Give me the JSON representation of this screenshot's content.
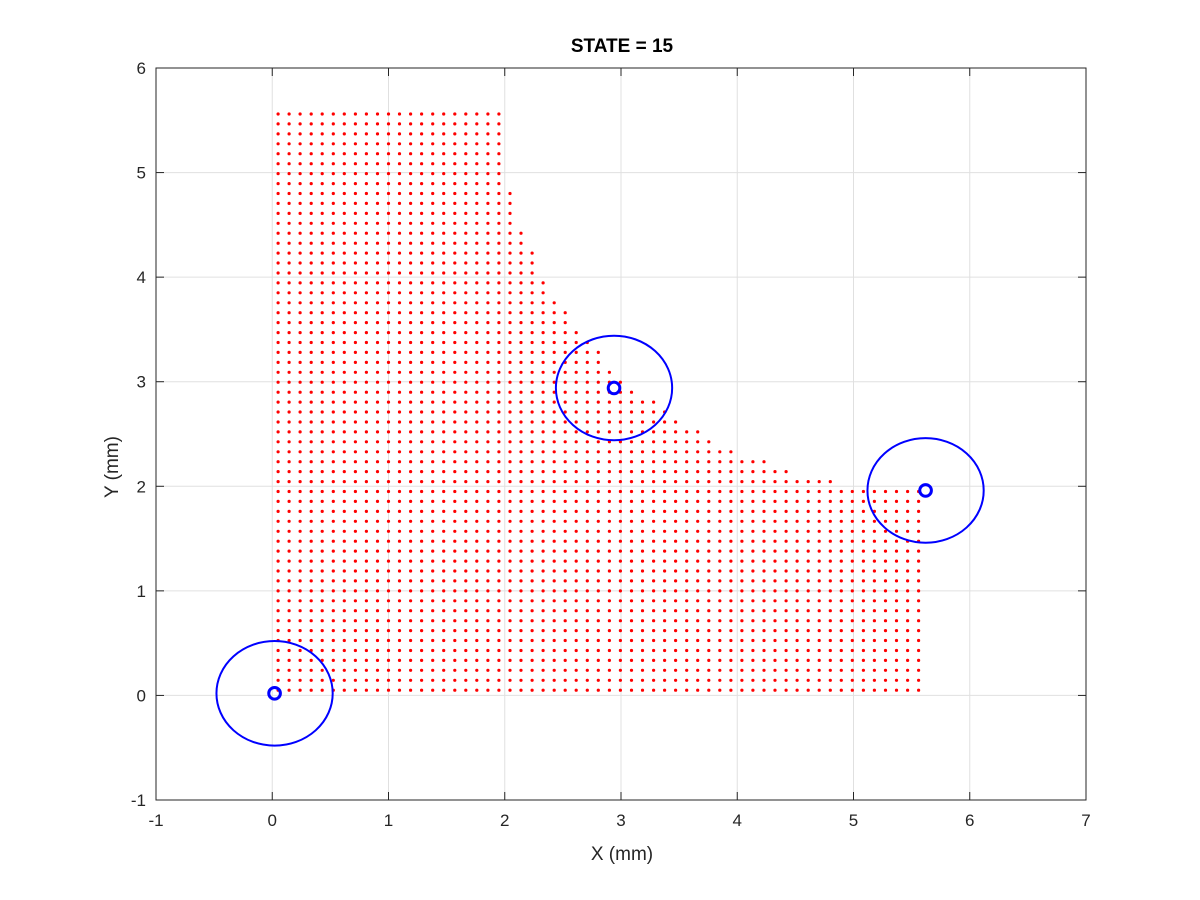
{
  "chart_data": {
    "type": "scatter",
    "title": "STATE = 15",
    "xlabel": "X (mm)",
    "ylabel": "Y (mm)",
    "xlim": [
      -1,
      7
    ],
    "ylim": [
      -1,
      6
    ],
    "xticks": [
      -1,
      0,
      1,
      2,
      3,
      4,
      5,
      6,
      7
    ],
    "yticks": [
      -1,
      0,
      1,
      2,
      3,
      4,
      5,
      6
    ],
    "xtick_labels": [
      "-1",
      "0",
      "1",
      "2",
      "3",
      "4",
      "5",
      "6",
      "7"
    ],
    "ytick_labels": [
      "-1",
      "0",
      "1",
      "2",
      "3",
      "4",
      "5",
      "6"
    ],
    "grid": true,
    "colors": {
      "points": "#ff0000",
      "circles": "#0000ff",
      "grid": "#e0e0e0",
      "axes": "#262626"
    },
    "series": [
      {
        "name": "mesh points",
        "marker": "dot",
        "domain": {
          "x_min": 0.05,
          "x_max": 5.6,
          "y_min": 0.05,
          "y_max": 5.6,
          "spacing": 0.095,
          "excluded_region": {
            "shape": "ellipse",
            "center": [
              5.6,
              5.6
            ],
            "radii": [
              3.63,
              3.63
            ]
          }
        }
      },
      {
        "name": "contacts",
        "marker": "circle",
        "points": [
          {
            "x": 0.02,
            "y": 0.02,
            "outer_rx": 0.5,
            "outer_ry": 0.5,
            "inner_r": 0.05
          },
          {
            "x": 2.94,
            "y": 2.94,
            "outer_rx": 0.5,
            "outer_ry": 0.5,
            "inner_r": 0.05
          },
          {
            "x": 5.62,
            "y": 1.96,
            "outer_rx": 0.5,
            "outer_ry": 0.5,
            "inner_r": 0.05
          }
        ]
      }
    ]
  }
}
